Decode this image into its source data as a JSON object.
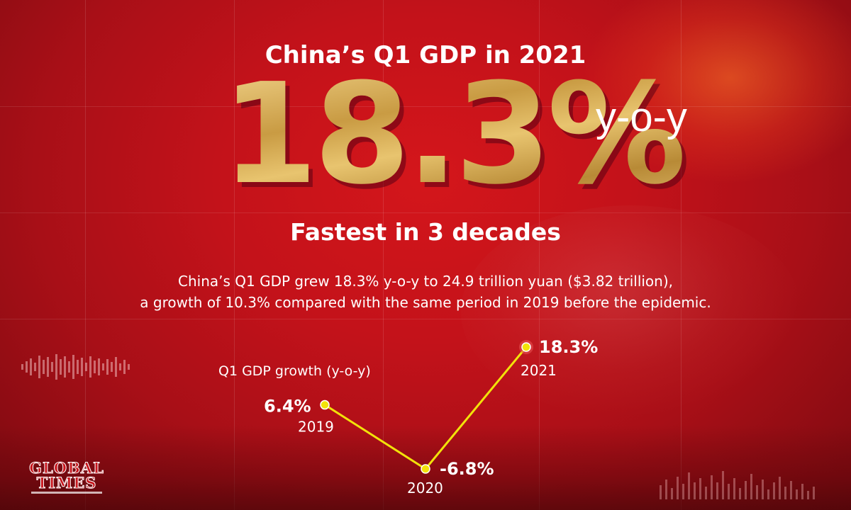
{
  "header": {
    "title": "China’s Q1 GDP in 2021",
    "headline_value": "18.3%",
    "headline_suffix": "y-o-y",
    "subtitle": "Fastest in 3 decades"
  },
  "description": {
    "line1": "China’s Q1 GDP grew 18.3% y-o-y to 24.9 trillion yuan ($3.82 trillion),",
    "line2": "a growth of 10.3% compared with the same period in 2019 before the epidemic."
  },
  "logo": {
    "text_line1": "GLOBAL",
    "text_line2": "TIMES"
  },
  "colors": {
    "background": "#c3121a",
    "gold": "#d9b263",
    "line": "#f2e20a",
    "text": "#ffffff"
  },
  "chart_data": {
    "type": "line",
    "title": "Q1 GDP growth (y-o-y)",
    "x": [
      "2019",
      "2020",
      "2021"
    ],
    "values": [
      6.4,
      -6.8,
      18.3
    ],
    "value_labels": [
      "6.4%",
      "-6.8%",
      "18.3%"
    ],
    "ylim": [
      -6.8,
      18.3
    ],
    "grid": false,
    "legend": "none"
  }
}
